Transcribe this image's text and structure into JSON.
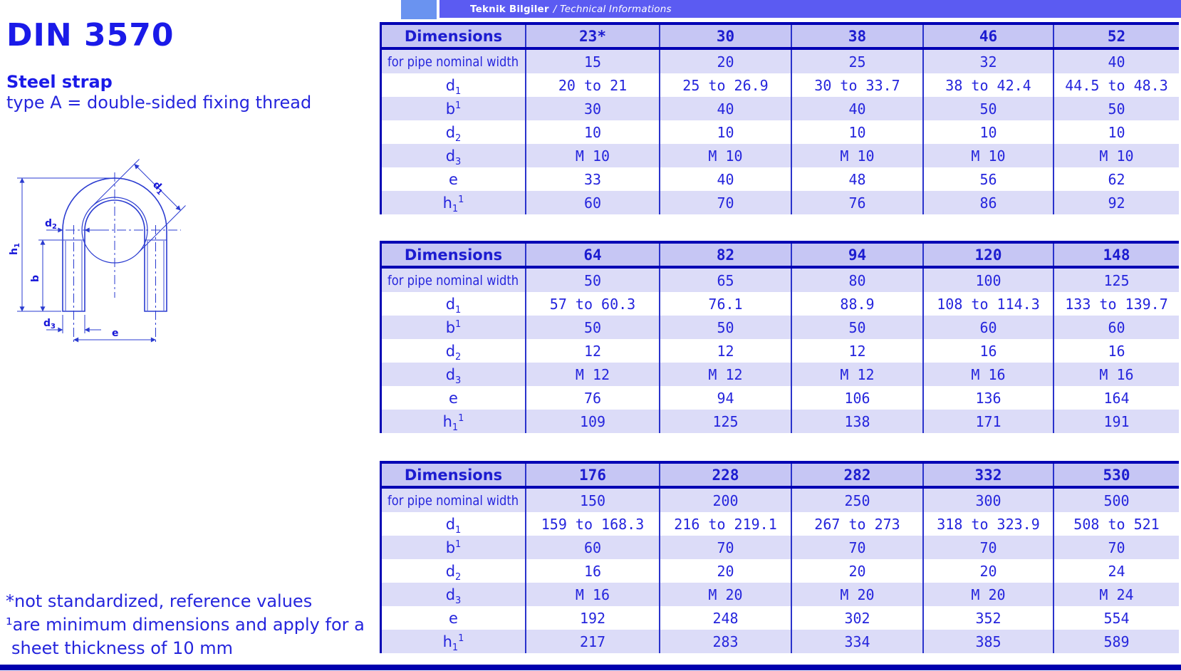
{
  "topbar": {
    "label_bold": "Teknik Bilgiler",
    "label_italic": "/ Technical Informations"
  },
  "left_panel": {
    "title": "DIN 3570",
    "product": "Steel strap",
    "type_line": "type A = double-sided fixing thread",
    "footnotes": [
      "*not standardized, reference values",
      "¹are minimum dimensions and apply for a",
      "sheet thickness of 10 mm"
    ]
  },
  "drawing": {
    "labels": {
      "h1": {
        "base": "h",
        "sub": "1"
      },
      "b": {
        "base": "b",
        "sub": ""
      },
      "d1": {
        "base": "d",
        "sub": "1"
      },
      "d2": {
        "base": "d",
        "sub": "2"
      },
      "d3": {
        "base": "d",
        "sub": "3"
      },
      "e": {
        "base": "e",
        "sub": ""
      }
    }
  },
  "tables": [
    {
      "header": {
        "label": "Dimensions",
        "columns": [
          "23*",
          "30",
          "38",
          "46",
          "52"
        ]
      },
      "rows": [
        {
          "label": {
            "base": "for pipe nominal width",
            "sub": "",
            "sup": "",
            "cond": true
          },
          "values": [
            "15",
            "20",
            "25",
            "32",
            "40"
          ]
        },
        {
          "label": {
            "base": "d",
            "sub": "1",
            "sup": ""
          },
          "values": [
            "20 to 21",
            "25 to 26.9",
            "30 to 33.7",
            "38 to 42.4",
            "44.5 to 48.3"
          ]
        },
        {
          "label": {
            "base": "b",
            "sub": "",
            "sup": "1"
          },
          "values": [
            "30",
            "40",
            "40",
            "50",
            "50"
          ]
        },
        {
          "label": {
            "base": "d",
            "sub": "2",
            "sup": ""
          },
          "values": [
            "10",
            "10",
            "10",
            "10",
            "10"
          ]
        },
        {
          "label": {
            "base": "d",
            "sub": "3",
            "sup": ""
          },
          "values": [
            "M 10",
            "M 10",
            "M 10",
            "M 10",
            "M 10"
          ]
        },
        {
          "label": {
            "base": "e",
            "sub": "",
            "sup": ""
          },
          "values": [
            "33",
            "40",
            "48",
            "56",
            "62"
          ]
        },
        {
          "label": {
            "base": "h",
            "sub": "1",
            "sup": "1"
          },
          "values": [
            "60",
            "70",
            "76",
            "86",
            "92"
          ]
        }
      ]
    },
    {
      "header": {
        "label": "Dimensions",
        "columns": [
          "64",
          "82",
          "94",
          "120",
          "148"
        ]
      },
      "rows": [
        {
          "label": {
            "base": "for pipe nominal width",
            "sub": "",
            "sup": "",
            "cond": true
          },
          "values": [
            "50",
            "65",
            "80",
            "100",
            "125"
          ]
        },
        {
          "label": {
            "base": "d",
            "sub": "1",
            "sup": ""
          },
          "values": [
            "57 to 60.3",
            "76.1",
            "88.9",
            "108 to 114.3",
            "133 to 139.7"
          ]
        },
        {
          "label": {
            "base": "b",
            "sub": "",
            "sup": "1"
          },
          "values": [
            "50",
            "50",
            "50",
            "60",
            "60"
          ]
        },
        {
          "label": {
            "base": "d",
            "sub": "2",
            "sup": ""
          },
          "values": [
            "12",
            "12",
            "12",
            "16",
            "16"
          ]
        },
        {
          "label": {
            "base": "d",
            "sub": "3",
            "sup": ""
          },
          "values": [
            "M 12",
            "M 12",
            "M 12",
            "M 16",
            "M 16"
          ]
        },
        {
          "label": {
            "base": "e",
            "sub": "",
            "sup": ""
          },
          "values": [
            "76",
            "94",
            "106",
            "136",
            "164"
          ]
        },
        {
          "label": {
            "base": "h",
            "sub": "1",
            "sup": "1"
          },
          "values": [
            "109",
            "125",
            "138",
            "171",
            "191"
          ]
        }
      ]
    },
    {
      "header": {
        "label": "Dimensions",
        "columns": [
          "176",
          "228",
          "282",
          "332",
          "530"
        ]
      },
      "rows": [
        {
          "label": {
            "base": "for pipe nominal width",
            "sub": "",
            "sup": "",
            "cond": true
          },
          "values": [
            "150",
            "200",
            "250",
            "300",
            "500"
          ]
        },
        {
          "label": {
            "base": "d",
            "sub": "1",
            "sup": ""
          },
          "values": [
            "159 to 168.3",
            "216 to 219.1",
            "267 to 273",
            "318 to 323.9",
            "508 to 521"
          ]
        },
        {
          "label": {
            "base": "b",
            "sub": "",
            "sup": "1"
          },
          "values": [
            "60",
            "70",
            "70",
            "70",
            "70"
          ]
        },
        {
          "label": {
            "base": "d",
            "sub": "2",
            "sup": ""
          },
          "values": [
            "16",
            "20",
            "20",
            "20",
            "24"
          ]
        },
        {
          "label": {
            "base": "d",
            "sub": "3",
            "sup": ""
          },
          "values": [
            "M 16",
            "M 20",
            "M 20",
            "M 20",
            "M 24"
          ]
        },
        {
          "label": {
            "base": "e",
            "sub": "",
            "sup": ""
          },
          "values": [
            "192",
            "248",
            "302",
            "352",
            "554"
          ]
        },
        {
          "label": {
            "base": "h",
            "sub": "1",
            "sup": "1"
          },
          "values": [
            "217",
            "283",
            "334",
            "385",
            "589"
          ]
        }
      ]
    }
  ],
  "colors": {
    "accent_blue": "#2525dd",
    "navy_rule": "#0000b0",
    "header_row_bg": "#c6c6f4",
    "alt_row_bg": "#dcdcf8",
    "topbar_blue": "#5b5bf2",
    "topbar_square_blue": "#6a93f0"
  }
}
